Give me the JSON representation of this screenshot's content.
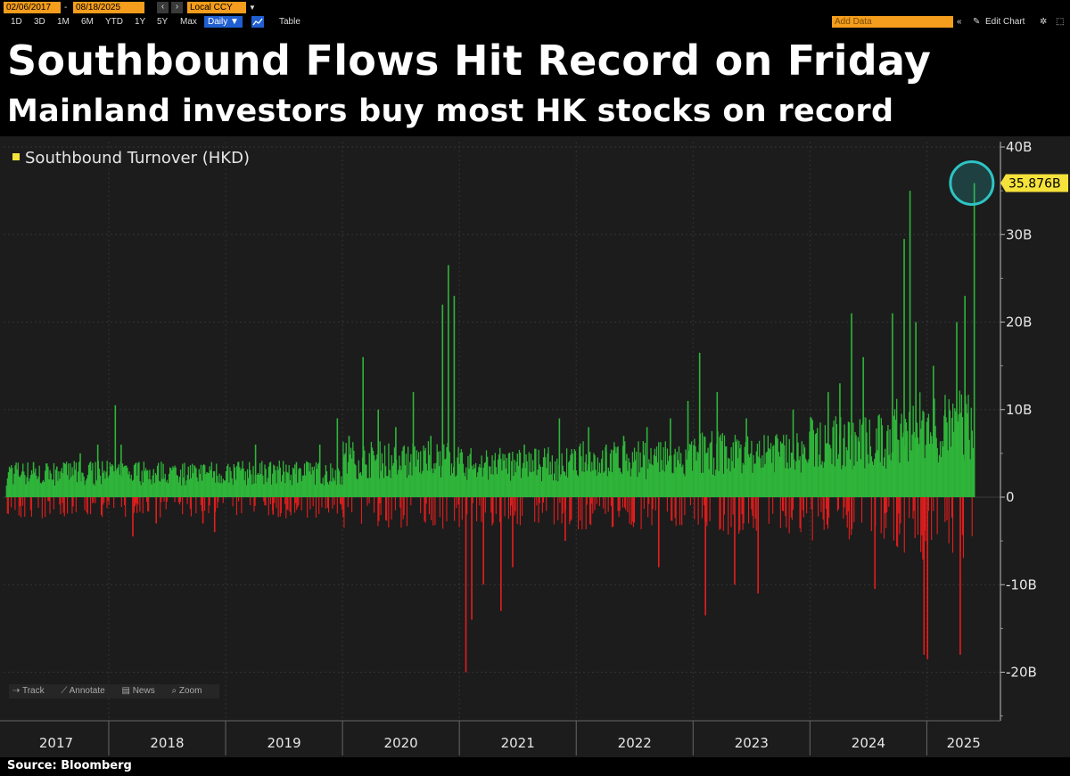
{
  "toolbar": {
    "start_date": "02/06/2017",
    "end_date": "08/18/2025",
    "currency": "Local CCY",
    "ranges": [
      "1D",
      "3D",
      "1M",
      "6M",
      "YTD",
      "1Y",
      "5Y",
      "Max"
    ],
    "frequency": "Daily ▼",
    "table_label": "Table",
    "add_data_placeholder": "Add Data",
    "edit_chart_label": "Edit Chart",
    "accent_color": "#f59d1c",
    "selected_color": "#1f5fd0"
  },
  "title": "Southbound Flows Hit Record on Friday",
  "subtitle": "Mainland investors buy most HK stocks on record",
  "source": "Source: Bloomberg",
  "chart_tools": [
    "Track",
    "Annotate",
    "News",
    "Zoom"
  ],
  "chart_data": {
    "type": "bar",
    "title": "Southbound Flows Hit Record on Friday",
    "subtitle": "Mainland investors buy most HK stocks on record",
    "legend": {
      "label": "Southbound Turnover (HKD)",
      "position": "top-left"
    },
    "series": [
      {
        "name": "Southbound Turnover (HKD)",
        "unit": "HKD billions",
        "positive_color": "#2fb53a",
        "negative_color": "#e31e1e"
      }
    ],
    "ylim": [
      -25,
      40
    ],
    "yticks": [
      40,
      30,
      20,
      10,
      0,
      -10,
      -20
    ],
    "ytick_labels": [
      "40B",
      "30B",
      "20B",
      "10B",
      "0",
      "-10B",
      "-20B"
    ],
    "xlim": [
      2017.1,
      2025.63
    ],
    "years": [
      "2017",
      "2018",
      "2019",
      "2020",
      "2021",
      "2022",
      "2023",
      "2024",
      "2025"
    ],
    "last_value": 35.876,
    "last_value_label": "35.876B",
    "highlight_color": "#2ec4c4",
    "grid": true,
    "points": [
      [
        2017.15,
        3
      ],
      [
        2017.35,
        4
      ],
      [
        2017.55,
        3.5
      ],
      [
        2017.75,
        5
      ],
      [
        2017.9,
        6
      ],
      [
        2018.05,
        10.5
      ],
      [
        2018.1,
        6
      ],
      [
        2018.2,
        -4.5
      ],
      [
        2018.4,
        -3
      ],
      [
        2018.6,
        2
      ],
      [
        2018.8,
        -3
      ],
      [
        2018.9,
        -4
      ],
      [
        2019.1,
        4
      ],
      [
        2019.25,
        6
      ],
      [
        2019.4,
        -2
      ],
      [
        2019.6,
        4
      ],
      [
        2019.8,
        6
      ],
      [
        2019.95,
        9
      ],
      [
        2020.05,
        7
      ],
      [
        2020.17,
        16
      ],
      [
        2020.3,
        10
      ],
      [
        2020.45,
        8
      ],
      [
        2020.6,
        12
      ],
      [
        2020.75,
        7
      ],
      [
        2020.85,
        22
      ],
      [
        2020.9,
        26.5
      ],
      [
        2020.95,
        23
      ],
      [
        2021.05,
        -20
      ],
      [
        2021.1,
        -14
      ],
      [
        2021.2,
        -10
      ],
      [
        2021.35,
        -13
      ],
      [
        2021.45,
        -8
      ],
      [
        2021.55,
        6
      ],
      [
        2021.75,
        5
      ],
      [
        2021.85,
        9
      ],
      [
        2021.9,
        -5
      ],
      [
        2022.1,
        8
      ],
      [
        2022.25,
        6
      ],
      [
        2022.4,
        7
      ],
      [
        2022.6,
        8
      ],
      [
        2022.7,
        -8
      ],
      [
        2022.8,
        9
      ],
      [
        2022.95,
        11
      ],
      [
        2023.05,
        16.5
      ],
      [
        2023.1,
        -13.5
      ],
      [
        2023.2,
        12
      ],
      [
        2023.35,
        -10
      ],
      [
        2023.45,
        9
      ],
      [
        2023.55,
        -11
      ],
      [
        2023.7,
        7
      ],
      [
        2023.85,
        10
      ],
      [
        2024.0,
        9
      ],
      [
        2024.15,
        12
      ],
      [
        2024.25,
        13
      ],
      [
        2024.35,
        21
      ],
      [
        2024.45,
        16
      ],
      [
        2024.55,
        -10.5
      ],
      [
        2024.7,
        21
      ],
      [
        2024.8,
        29.5
      ],
      [
        2024.85,
        35
      ],
      [
        2024.9,
        20
      ],
      [
        2024.97,
        -18
      ],
      [
        2025.0,
        -18.5
      ],
      [
        2025.05,
        15
      ],
      [
        2025.15,
        10
      ],
      [
        2025.25,
        20
      ],
      [
        2025.28,
        -18
      ],
      [
        2025.32,
        23
      ],
      [
        2025.4,
        35.876
      ]
    ]
  }
}
